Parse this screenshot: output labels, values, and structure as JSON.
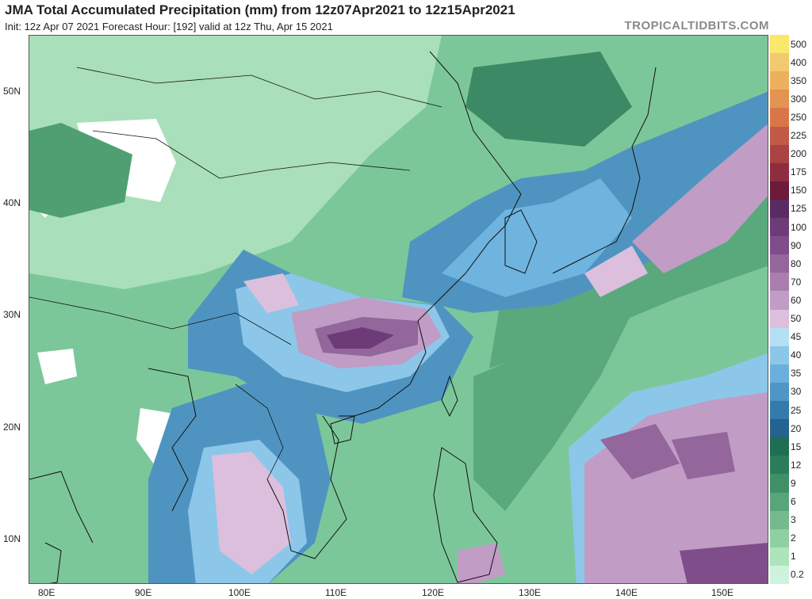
{
  "header": {
    "title": "JMA Total Accumulated Precipitation (mm) from 12z07Apr2021 to 12z15Apr2021",
    "subtitle": "Init: 12z Apr 07 2021   Forecast Hour: [192]   valid at 12z Thu, Apr 15 2021",
    "brand": "TROPICALTIDBITS.COM"
  },
  "axes": {
    "lat_labels": [
      "50N",
      "40N",
      "30N",
      "20N",
      "10N"
    ],
    "lon_labels": [
      "80E",
      "90E",
      "100E",
      "110E",
      "120E",
      "130E",
      "140E",
      "150E"
    ]
  },
  "colorbar": {
    "unit": "mm",
    "levels": [
      "500",
      "400",
      "350",
      "300",
      "250",
      "225",
      "200",
      "175",
      "150",
      "125",
      "100",
      "90",
      "80",
      "70",
      "60",
      "50",
      "45",
      "40",
      "35",
      "30",
      "25",
      "20",
      "15",
      "12",
      "9",
      "6",
      "3",
      "2",
      "1",
      "0.2"
    ],
    "colors": [
      "#f9e86a",
      "#f2c971",
      "#eeb05e",
      "#e39352",
      "#d8764a",
      "#c15a46",
      "#a94344",
      "#8f2c40",
      "#6c1b3b",
      "#5a2a62",
      "#6d3c78",
      "#7e4d8a",
      "#93669c",
      "#a97eae",
      "#c19cc5",
      "#dbbfdc",
      "#b3e0f2",
      "#8cc7ea",
      "#6bb0dc",
      "#4d96c7",
      "#347aac",
      "#24628f",
      "#1f6d52",
      "#2b7d5a",
      "#3f9068",
      "#58a57a",
      "#74ba8d",
      "#8fd0a2",
      "#aee4bb",
      "#cdf3dd"
    ]
  }
}
